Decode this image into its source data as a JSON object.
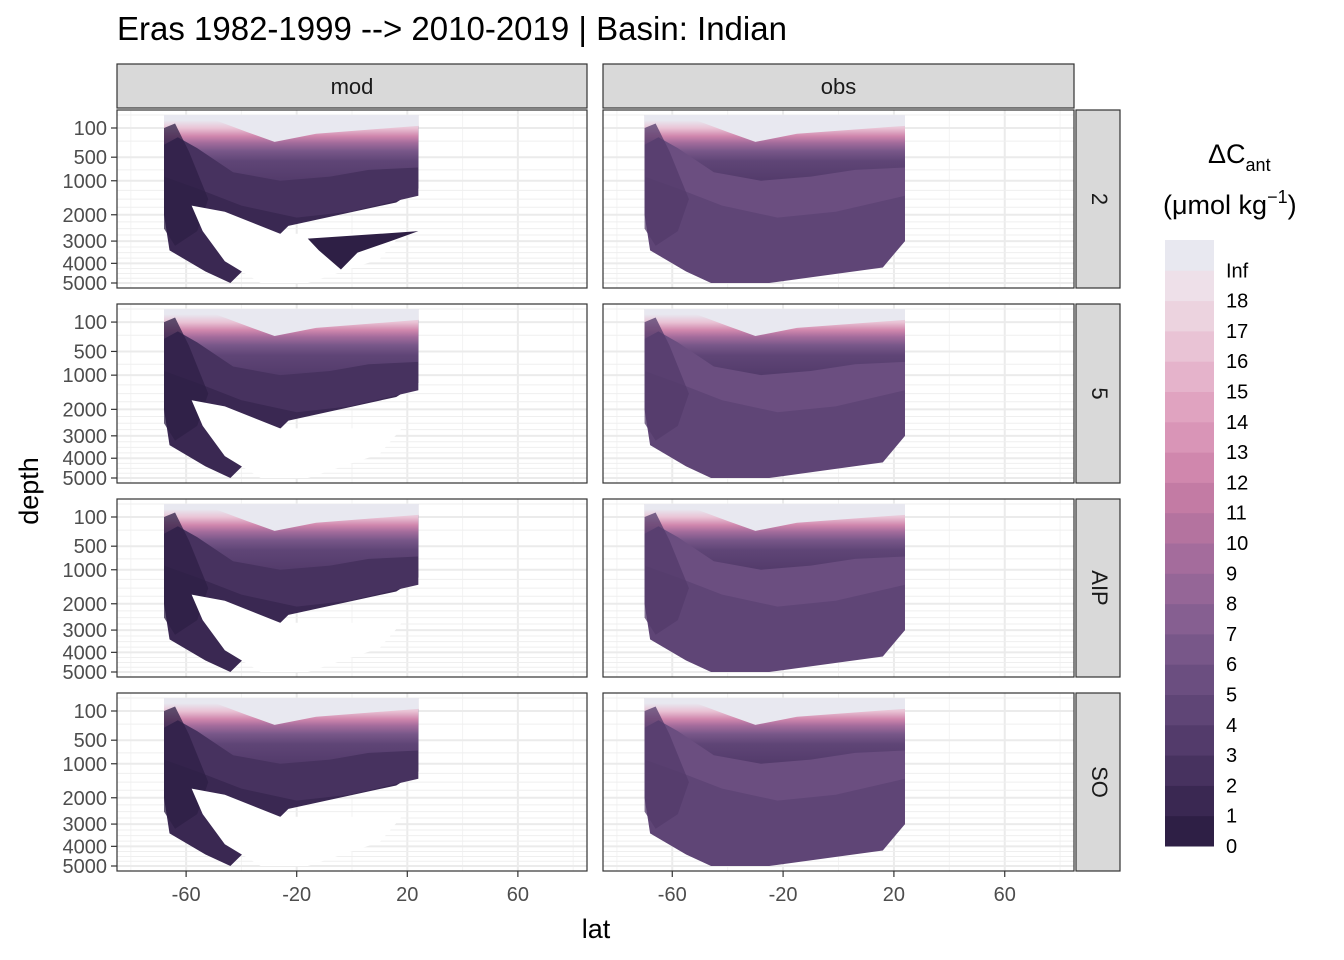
{
  "chart_data": {
    "type": "heatmap",
    "title": "Eras 1982-1999 --> 2010-2019 | Basin: Indian",
    "xlabel": "lat",
    "ylabel": "depth",
    "columns": [
      "mod",
      "obs"
    ],
    "rows": [
      "2",
      "5",
      "AIP",
      "SO"
    ],
    "x_ticks": [
      -60,
      -20,
      20,
      60
    ],
    "x_tick_labels": [
      "-60",
      "-20",
      "20",
      "60"
    ],
    "xlim": [
      -85,
      85
    ],
    "y_ticks": [
      100,
      500,
      1000,
      2000,
      3000,
      4000,
      5000
    ],
    "y_tick_labels": [
      "100",
      "500",
      "1000",
      "2000",
      "3000",
      "4000",
      "5000"
    ],
    "ylim": [
      0,
      5000
    ],
    "y_reversed": true,
    "grid": true,
    "legend": {
      "title": "ΔC",
      "title_sub": "ant",
      "unit_open": "(μmol kg",
      "unit_sup": "−1",
      "unit_close": ")",
      "placement": "right",
      "breaks": [
        0,
        1,
        2,
        3,
        4,
        5,
        6,
        7,
        8,
        9,
        10,
        11,
        12,
        13,
        14,
        15,
        16,
        17,
        18
      ],
      "labels": [
        "0",
        "1",
        "2",
        "3",
        "4",
        "5",
        "6",
        "7",
        "8",
        "9",
        "10",
        "11",
        "12",
        "13",
        "14",
        "15",
        "16",
        "17",
        "18",
        "Inf"
      ],
      "colors": [
        "#2e1f45",
        "#3a2852",
        "#47325f",
        "#533b6b",
        "#5f4576",
        "#6b4e80",
        "#785789",
        "#865f91",
        "#956697",
        "#a46c9c",
        "#b4739f",
        "#c37ba4",
        "#d087ad",
        "#d995b7",
        "#e0a3c0",
        "#e5b3cb",
        "#e9c3d5",
        "#ecd3df",
        "#eee0e9",
        "#e8e8f0"
      ]
    },
    "panels": [
      {
        "column": "mod",
        "row": "2",
        "lat_range": [
          -68,
          24
        ],
        "max_depth": 4750
      },
      {
        "column": "obs",
        "row": "2",
        "lat_range": [
          -70,
          24
        ],
        "max_depth": 5000
      },
      {
        "column": "mod",
        "row": "5",
        "lat_range": [
          -68,
          24
        ],
        "max_depth": 5000
      },
      {
        "column": "obs",
        "row": "5",
        "lat_range": [
          -70,
          24
        ],
        "max_depth": 5000
      },
      {
        "column": "mod",
        "row": "AIP",
        "lat_range": [
          -68,
          24
        ],
        "max_depth": 5000
      },
      {
        "column": "obs",
        "row": "AIP",
        "lat_range": [
          -70,
          24
        ],
        "max_depth": 5000
      },
      {
        "column": "mod",
        "row": "SO",
        "lat_range": [
          -68,
          24
        ],
        "max_depth": 5000
      },
      {
        "column": "obs",
        "row": "SO",
        "lat_range": [
          -70,
          24
        ],
        "max_depth": 5000
      }
    ]
  }
}
